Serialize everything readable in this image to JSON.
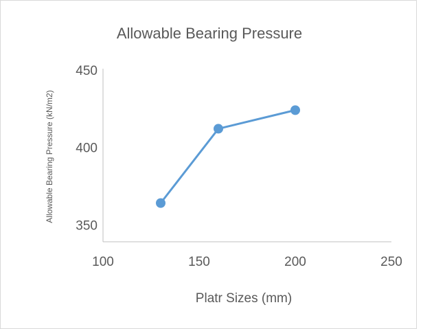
{
  "chart_data": {
    "type": "line",
    "title": "Allowable Bearing Pressure",
    "x_label": "Platr Sizes (mm)",
    "y_label": "Allowable Bearing Pressure (kN/m2)",
    "x": [
      130,
      160,
      200
    ],
    "series": [
      {
        "name": "Allowable Bearing Pressure",
        "color": "#5b9bd5",
        "values": [
          365,
          413,
          425
        ]
      }
    ],
    "xlim": [
      100,
      250
    ],
    "xticks": [
      100,
      150,
      200,
      250
    ],
    "ylim": [
      340,
      450
    ],
    "yticks": [
      350,
      400,
      450
    ],
    "grid": false
  }
}
